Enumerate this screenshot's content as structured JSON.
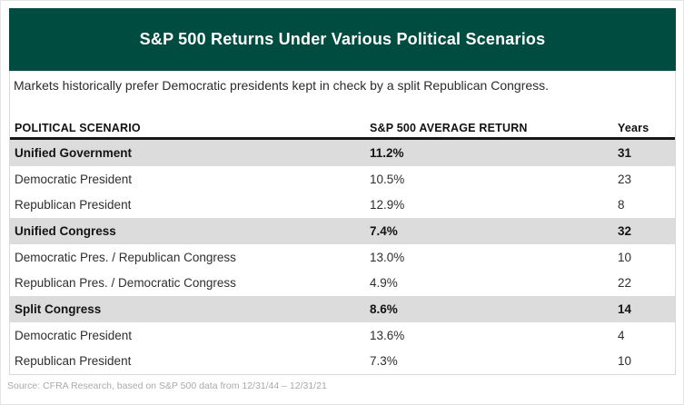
{
  "figure": {
    "title": "S&P 500 Returns Under Various Political Scenarios",
    "subtitle": "Markets historically prefer Democratic presidents kept in check by a split Republican Congress."
  },
  "table": {
    "columns": {
      "scenario": "POLITICAL SCENARIO",
      "return": "S&P 500 AVERAGE RETURN",
      "years": "Years"
    },
    "rows": [
      {
        "scenario": "Unified Government",
        "return": "11.2%",
        "years": "31"
      },
      {
        "scenario": "Democratic President",
        "return": "10.5%",
        "years": "23"
      },
      {
        "scenario": "Republican President",
        "return": "12.9%",
        "years": "8"
      },
      {
        "scenario": "Unified Congress",
        "return": "7.4%",
        "years": "32"
      },
      {
        "scenario": "Democratic Pres. / Republican Congress",
        "return": "13.0%",
        "years": "10"
      },
      {
        "scenario": "Republican Pres. / Democratic Congress",
        "return": "4.9%",
        "years": "22"
      },
      {
        "scenario": "Split Congress",
        "return": "8.6%",
        "years": "14"
      },
      {
        "scenario": "Democratic President",
        "return": "13.6%",
        "years": "4"
      },
      {
        "scenario": "Republican President",
        "return": "7.3%",
        "years": "10"
      }
    ]
  },
  "source": "Source: CFRA Research, based on S&P 500 data from 12/31/44 – 12/31/21",
  "colors": {
    "banner_green": "#014c41",
    "highlight_row_gray": "#dcdcdc",
    "header_rule_black": "#161616",
    "source_text_gray": "#aaaaaa"
  },
  "chart_data": {
    "type": "table",
    "title": "S&P 500 Returns Under Various Political Scenarios",
    "subtitle": "Markets historically prefer Democratic presidents kept in check by a split Republican Congress.",
    "columns": [
      "POLITICAL SCENARIO",
      "S&P 500 AVERAGE RETURN",
      "Years"
    ],
    "rows": [
      [
        "Unified Government",
        11.2,
        31
      ],
      [
        "Democratic President",
        10.5,
        23
      ],
      [
        "Republican President",
        12.9,
        8
      ],
      [
        "Unified Congress",
        7.4,
        32
      ],
      [
        "Democratic Pres. / Republican Congress",
        13.0,
        10
      ],
      [
        "Republican Pres. / Democratic Congress",
        4.9,
        22
      ],
      [
        "Split Congress",
        8.6,
        14
      ],
      [
        "Democratic President",
        13.6,
        4
      ],
      [
        "Republican President",
        7.3,
        10
      ]
    ],
    "return_unit": "%",
    "highlighted_row_indices": [
      0,
      3,
      6
    ],
    "source": "Source: CFRA Research, based on S&P 500 data from 12/31/44 – 12/31/21"
  }
}
